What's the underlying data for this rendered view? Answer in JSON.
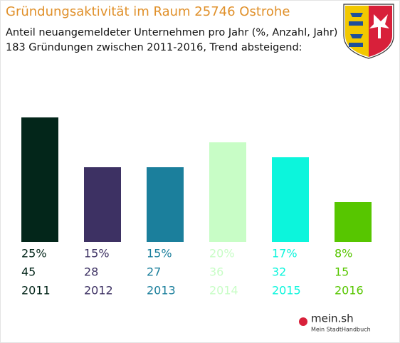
{
  "chart_data": {
    "type": "bar",
    "title": "Gründungsaktivität im Raum 25746 Ostrohe",
    "subtitle": [
      "Anteil neuangemeldeter Unternehmen pro Jahr (%, Anzahl, Jahr)",
      "183 Gründungen zwischen 2011-2016, Trend absteigend:"
    ],
    "categories": [
      "2011",
      "2012",
      "2013",
      "2014",
      "2015",
      "2016"
    ],
    "values": [
      25,
      15,
      15,
      20,
      17,
      8
    ],
    "value_labels": [
      "25%",
      "15%",
      "15%",
      "20%",
      "17%",
      "8%"
    ],
    "counts": [
      45,
      28,
      27,
      36,
      32,
      15
    ],
    "colors": [
      "#03261a",
      "#3d3163",
      "#1b7f9c",
      "#c8fdc6",
      "#0cf5dc",
      "#57c600"
    ]
  },
  "logo": {
    "name": "mein.sh",
    "tagline": "Mein StadtHandbuch"
  }
}
